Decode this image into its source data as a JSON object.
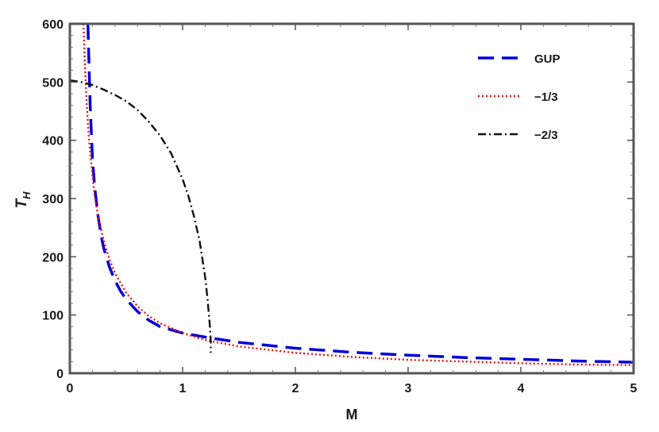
{
  "chart_data": {
    "type": "line",
    "xlabel": "M",
    "ylabel": "T",
    "ylabel_sub": "H",
    "xlim": [
      0,
      5
    ],
    "ylim": [
      0,
      600
    ],
    "xticks": [
      0,
      1,
      2,
      3,
      4,
      5
    ],
    "yticks": [
      0,
      100,
      200,
      300,
      400,
      500,
      600
    ],
    "xtick_labels": [
      "0",
      "1",
      "2",
      "3",
      "4",
      "5"
    ],
    "ytick_labels": [
      "0",
      "100",
      "200",
      "300",
      "400",
      "500",
      "600"
    ],
    "grid": false,
    "legend_position": "top-right",
    "series": [
      {
        "name": "GUP",
        "color": "#0000dd",
        "style": "dashed",
        "x": [
          0.16,
          0.17,
          0.18,
          0.2,
          0.22,
          0.25,
          0.28,
          0.3,
          0.35,
          0.4,
          0.45,
          0.5,
          0.6,
          0.7,
          0.8,
          1.0,
          1.2,
          1.5,
          2.0,
          2.5,
          3.0,
          3.5,
          4.0,
          4.5,
          5.0
        ],
        "y": [
          600,
          530,
          460,
          370,
          320,
          270,
          233,
          215,
          183,
          159,
          141,
          127,
          106,
          91,
          80,
          69,
          62,
          53,
          43,
          36,
          31,
          27,
          24,
          21,
          19
        ]
      },
      {
        "name": "−1/3",
        "color": "#ee1111",
        "style": "dotted",
        "x": [
          0.12,
          0.13,
          0.14,
          0.15,
          0.17,
          0.2,
          0.22,
          0.25,
          0.3,
          0.35,
          0.4,
          0.5,
          0.6,
          0.7,
          0.8,
          1.0,
          1.2,
          1.5,
          2.0,
          2.5,
          3.0,
          3.5,
          4.0,
          4.5,
          5.0
        ],
        "y": [
          600,
          550,
          500,
          460,
          400,
          340,
          305,
          270,
          228,
          196,
          172,
          138,
          115,
          98,
          86,
          69,
          57,
          46,
          35,
          28,
          23,
          20,
          17,
          15,
          14
        ]
      },
      {
        "name": "−2/3",
        "color": "#111111",
        "style": "dashdot",
        "x": [
          0.0,
          0.1,
          0.2,
          0.3,
          0.4,
          0.5,
          0.6,
          0.7,
          0.8,
          0.9,
          1.0,
          1.05,
          1.1,
          1.15,
          1.2,
          1.22,
          1.24,
          1.25,
          1.25
        ],
        "y": [
          503,
          500,
          495,
          487,
          478,
          467,
          452,
          432,
          408,
          377,
          333,
          305,
          270,
          228,
          165,
          130,
          85,
          55,
          35
        ]
      }
    ]
  }
}
